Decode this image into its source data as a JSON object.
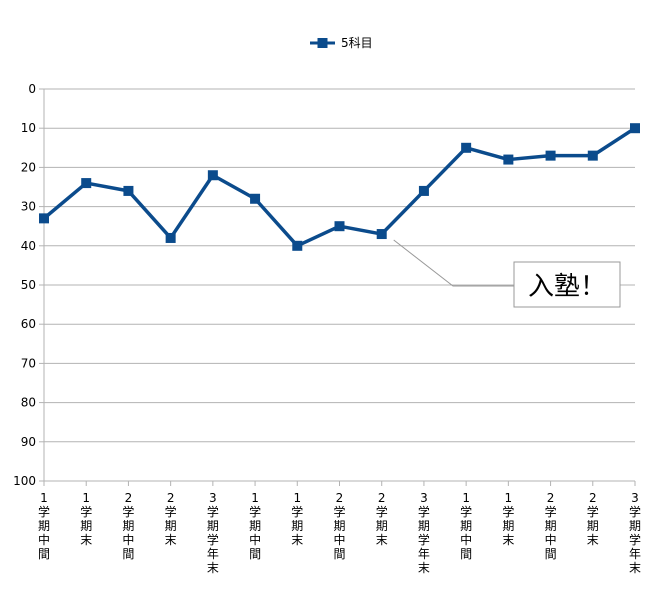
{
  "chart_data": {
    "type": "line",
    "title": "",
    "xlabel": "",
    "ylabel": "",
    "y_axis_reversed": true,
    "ylim": [
      0,
      100
    ],
    "y_ticks": [
      0,
      10,
      20,
      30,
      40,
      50,
      60,
      70,
      80,
      90,
      100
    ],
    "grid": "horizontal",
    "legend_position": "top-center",
    "categories": [
      "1学期中間",
      "1学期末",
      "2学期中間",
      "2学期末",
      "3学期学年末",
      "1学期中間",
      "1学期末",
      "2学期中間",
      "2学期末",
      "3学期学年末",
      "1学期中間",
      "1学期末",
      "2学期中間",
      "2学期末",
      "3学期学年末"
    ],
    "category_number": [
      "1",
      "1",
      "2",
      "2",
      "3",
      "1",
      "1",
      "2",
      "2",
      "3",
      "1",
      "1",
      "2",
      "2",
      "3"
    ],
    "category_chars": [
      [
        "学",
        "期",
        "中",
        "間"
      ],
      [
        "学",
        "期",
        "末"
      ],
      [
        "学",
        "期",
        "中",
        "間"
      ],
      [
        "学",
        "期",
        "末"
      ],
      [
        "学",
        "期",
        "学",
        "年",
        "末"
      ],
      [
        "学",
        "期",
        "中",
        "間"
      ],
      [
        "学",
        "期",
        "末"
      ],
      [
        "学",
        "期",
        "中",
        "間"
      ],
      [
        "学",
        "期",
        "末"
      ],
      [
        "学",
        "期",
        "学",
        "年",
        "末"
      ],
      [
        "学",
        "期",
        "中",
        "間"
      ],
      [
        "学",
        "期",
        "末"
      ],
      [
        "学",
        "期",
        "中",
        "間"
      ],
      [
        "学",
        "期",
        "末"
      ],
      [
        "学",
        "期",
        "学",
        "年",
        "末"
      ]
    ],
    "series": [
      {
        "name": "5科目",
        "color": "#0b4b8c",
        "marker": "square",
        "values": [
          33,
          24,
          26,
          38,
          22,
          28,
          40,
          35,
          37,
          26,
          15,
          18,
          17,
          17,
          10
        ]
      }
    ],
    "annotations": [
      {
        "text": "入塾！",
        "points_to_category_index": 8
      }
    ]
  }
}
